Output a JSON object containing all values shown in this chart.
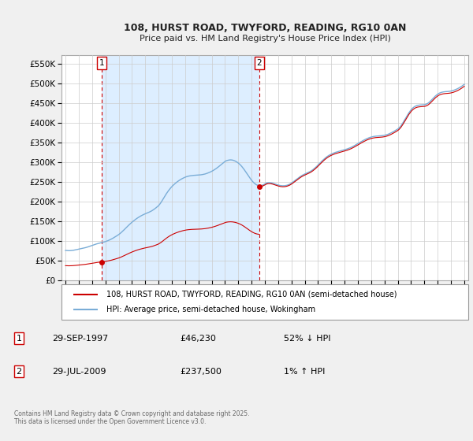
{
  "title_line1": "108, HURST ROAD, TWYFORD, READING, RG10 0AN",
  "title_line2": "Price paid vs. HM Land Registry's House Price Index (HPI)",
  "ylim": [
    0,
    572000
  ],
  "yticks": [
    0,
    50000,
    100000,
    150000,
    200000,
    250000,
    300000,
    350000,
    400000,
    450000,
    500000,
    550000
  ],
  "xlim_start": 1994.7,
  "xlim_end": 2025.3,
  "bg_color": "#f0f0f0",
  "plot_bg_color": "#ffffff",
  "shade_color": "#ddeeff",
  "grid_color": "#cccccc",
  "sale1_x": 1997.747,
  "sale1_y": 46230,
  "sale1_label": "1",
  "sale2_x": 2009.572,
  "sale2_y": 237500,
  "sale2_label": "2",
  "sale_color": "#cc0000",
  "hpi_color": "#7aadd7",
  "legend_label_red": "108, HURST ROAD, TWYFORD, READING, RG10 0AN (semi-detached house)",
  "legend_label_blue": "HPI: Average price, semi-detached house, Wokingham",
  "annotation1_date": "29-SEP-1997",
  "annotation1_price": "£46,230",
  "annotation1_hpi": "52% ↓ HPI",
  "annotation2_date": "29-JUL-2009",
  "annotation2_price": "£237,500",
  "annotation2_hpi": "1% ↑ HPI",
  "footer": "Contains HM Land Registry data © Crown copyright and database right 2025.\nThis data is licensed under the Open Government Licence v3.0.",
  "hpi_index_x": [
    1995.0,
    1995.083,
    1995.167,
    1995.25,
    1995.333,
    1995.417,
    1995.5,
    1995.583,
    1995.667,
    1995.75,
    1995.833,
    1995.917,
    1996.0,
    1996.083,
    1996.167,
    1996.25,
    1996.333,
    1996.417,
    1996.5,
    1996.583,
    1996.667,
    1996.75,
    1996.833,
    1996.917,
    1997.0,
    1997.083,
    1997.167,
    1997.25,
    1997.333,
    1997.417,
    1997.5,
    1997.583,
    1997.667,
    1997.747,
    1997.833,
    1997.917,
    1998.0,
    1998.083,
    1998.167,
    1998.25,
    1998.333,
    1998.417,
    1998.5,
    1998.583,
    1998.667,
    1998.75,
    1998.833,
    1998.917,
    1999.0,
    1999.083,
    1999.167,
    1999.25,
    1999.333,
    1999.417,
    1999.5,
    1999.583,
    1999.667,
    1999.75,
    1999.833,
    1999.917,
    2000.0,
    2000.083,
    2000.167,
    2000.25,
    2000.333,
    2000.417,
    2000.5,
    2000.583,
    2000.667,
    2000.75,
    2000.833,
    2000.917,
    2001.0,
    2001.083,
    2001.167,
    2001.25,
    2001.333,
    2001.417,
    2001.5,
    2001.583,
    2001.667,
    2001.75,
    2001.833,
    2001.917,
    2002.0,
    2002.083,
    2002.167,
    2002.25,
    2002.333,
    2002.417,
    2002.5,
    2002.583,
    2002.667,
    2002.75,
    2002.833,
    2002.917,
    2003.0,
    2003.083,
    2003.167,
    2003.25,
    2003.333,
    2003.417,
    2003.5,
    2003.583,
    2003.667,
    2003.75,
    2003.833,
    2003.917,
    2004.0,
    2004.083,
    2004.167,
    2004.25,
    2004.333,
    2004.417,
    2004.5,
    2004.583,
    2004.667,
    2004.75,
    2004.833,
    2004.917,
    2005.0,
    2005.083,
    2005.167,
    2005.25,
    2005.333,
    2005.417,
    2005.5,
    2005.583,
    2005.667,
    2005.75,
    2005.833,
    2005.917,
    2006.0,
    2006.083,
    2006.167,
    2006.25,
    2006.333,
    2006.417,
    2006.5,
    2006.583,
    2006.667,
    2006.75,
    2006.833,
    2006.917,
    2007.0,
    2007.083,
    2007.167,
    2007.25,
    2007.333,
    2007.417,
    2007.5,
    2007.583,
    2007.667,
    2007.75,
    2007.833,
    2007.917,
    2008.0,
    2008.083,
    2008.167,
    2008.25,
    2008.333,
    2008.417,
    2008.5,
    2008.583,
    2008.667,
    2008.75,
    2008.833,
    2008.917,
    2009.0,
    2009.083,
    2009.167,
    2009.25,
    2009.333,
    2009.417,
    2009.5,
    2009.572,
    2009.583,
    2009.667,
    2009.75,
    2009.833,
    2009.917,
    2010.0,
    2010.083,
    2010.167,
    2010.25,
    2010.333,
    2010.417,
    2010.5,
    2010.583,
    2010.667,
    2010.75,
    2010.833,
    2010.917,
    2011.0,
    2011.083,
    2011.167,
    2011.25,
    2011.333,
    2011.417,
    2011.5,
    2011.583,
    2011.667,
    2011.75,
    2011.833,
    2011.917,
    2012.0,
    2012.083,
    2012.167,
    2012.25,
    2012.333,
    2012.417,
    2012.5,
    2012.583,
    2012.667,
    2012.75,
    2012.833,
    2012.917,
    2013.0,
    2013.083,
    2013.167,
    2013.25,
    2013.333,
    2013.417,
    2013.5,
    2013.583,
    2013.667,
    2013.75,
    2013.833,
    2013.917,
    2014.0,
    2014.083,
    2014.167,
    2014.25,
    2014.333,
    2014.417,
    2014.5,
    2014.583,
    2014.667,
    2014.75,
    2014.833,
    2014.917,
    2015.0,
    2015.083,
    2015.167,
    2015.25,
    2015.333,
    2015.417,
    2015.5,
    2015.583,
    2015.667,
    2015.75,
    2015.833,
    2015.917,
    2016.0,
    2016.083,
    2016.167,
    2016.25,
    2016.333,
    2016.417,
    2016.5,
    2016.583,
    2016.667,
    2016.75,
    2016.833,
    2016.917,
    2017.0,
    2017.083,
    2017.167,
    2017.25,
    2017.333,
    2017.417,
    2017.5,
    2017.583,
    2017.667,
    2017.75,
    2017.833,
    2017.917,
    2018.0,
    2018.083,
    2018.167,
    2018.25,
    2018.333,
    2018.417,
    2018.5,
    2018.583,
    2018.667,
    2018.75,
    2018.833,
    2018.917,
    2019.0,
    2019.083,
    2019.167,
    2019.25,
    2019.333,
    2019.417,
    2019.5,
    2019.583,
    2019.667,
    2019.75,
    2019.833,
    2019.917,
    2020.0,
    2020.083,
    2020.167,
    2020.25,
    2020.333,
    2020.417,
    2020.5,
    2020.583,
    2020.667,
    2020.75,
    2020.833,
    2020.917,
    2021.0,
    2021.083,
    2021.167,
    2021.25,
    2021.333,
    2021.417,
    2021.5,
    2021.583,
    2021.667,
    2021.75,
    2021.833,
    2021.917,
    2022.0,
    2022.083,
    2022.167,
    2022.25,
    2022.333,
    2022.417,
    2022.5,
    2022.583,
    2022.667,
    2022.75,
    2022.833,
    2022.917,
    2023.0,
    2023.083,
    2023.167,
    2023.25,
    2023.333,
    2023.417,
    2023.5,
    2023.583,
    2023.667,
    2023.75,
    2023.833,
    2023.917,
    2024.0,
    2024.083,
    2024.167,
    2024.25,
    2024.333,
    2024.417,
    2024.5,
    2024.583,
    2024.667,
    2024.75,
    2024.833,
    2024.917,
    2025.0
  ],
  "hpi_index_y": [
    76.5,
    76.2,
    76.0,
    75.8,
    75.9,
    76.1,
    76.4,
    76.8,
    77.3,
    77.9,
    78.5,
    79.2,
    79.9,
    80.5,
    81.1,
    81.7,
    82.3,
    82.9,
    83.6,
    84.4,
    85.3,
    86.3,
    87.3,
    88.3,
    89.3,
    90.3,
    91.3,
    92.3,
    93.2,
    94.0,
    94.8,
    95.5,
    96.2,
    96.8,
    97.5,
    98.3,
    99.2,
    100.2,
    101.3,
    102.5,
    103.8,
    105.2,
    106.7,
    108.3,
    110.0,
    111.8,
    113.6,
    115.4,
    117.3,
    119.5,
    121.9,
    124.5,
    127.2,
    130.0,
    132.9,
    135.8,
    138.6,
    141.4,
    144.1,
    146.7,
    149.2,
    151.6,
    153.9,
    156.1,
    158.2,
    160.2,
    162.0,
    163.8,
    165.4,
    167.0,
    168.4,
    169.8,
    171.0,
    172.2,
    173.4,
    174.6,
    175.9,
    177.3,
    178.9,
    180.7,
    182.7,
    184.8,
    187.1,
    189.5,
    192.0,
    195.4,
    199.3,
    203.7,
    208.4,
    213.2,
    218.0,
    222.5,
    226.8,
    230.8,
    234.5,
    238.0,
    241.2,
    244.1,
    246.8,
    249.3,
    251.7,
    253.9,
    256.0,
    257.9,
    259.7,
    261.3,
    262.8,
    264.2,
    265.5,
    266.6,
    267.5,
    268.2,
    268.8,
    269.3,
    269.7,
    270.0,
    270.3,
    270.5,
    270.7,
    270.9,
    271.1,
    271.3,
    271.6,
    272.0,
    272.5,
    273.1,
    273.8,
    274.7,
    275.7,
    276.8,
    278.0,
    279.3,
    280.7,
    282.3,
    284.0,
    285.8,
    287.8,
    289.9,
    292.1,
    294.4,
    296.8,
    299.2,
    301.6,
    303.9,
    306.1,
    307.8,
    308.8,
    309.5,
    310.0,
    310.2,
    310.0,
    309.5,
    308.6,
    307.4,
    305.9,
    304.1,
    302.0,
    299.6,
    296.8,
    293.7,
    290.2,
    286.4,
    282.4,
    278.2,
    273.9,
    269.6,
    265.4,
    261.4,
    257.6,
    254.2,
    251.2,
    248.7,
    246.6,
    245.1,
    244.1,
    243.5,
    243.3,
    243.5,
    244.1,
    245.1,
    246.5,
    248.2,
    249.7,
    250.8,
    251.4,
    251.5,
    251.3,
    250.8,
    250.1,
    249.2,
    248.2,
    247.2,
    246.2,
    245.3,
    244.5,
    243.9,
    243.5,
    243.3,
    243.3,
    243.5,
    244.0,
    244.7,
    245.7,
    246.9,
    248.4,
    250.2,
    252.2,
    254.4,
    256.6,
    258.8,
    261.0,
    263.2,
    265.3,
    267.3,
    269.1,
    270.8,
    272.3,
    273.7,
    275.0,
    276.2,
    277.5,
    278.9,
    280.4,
    282.2,
    284.2,
    286.4,
    288.8,
    291.4,
    294.1,
    297.0,
    299.9,
    302.8,
    305.7,
    308.5,
    311.2,
    313.8,
    316.2,
    318.4,
    320.4,
    322.2,
    323.8,
    325.2,
    326.5,
    327.7,
    328.8,
    329.8,
    330.7,
    331.6,
    332.4,
    333.2,
    334.0,
    334.8,
    335.6,
    336.4,
    337.3,
    338.2,
    339.2,
    340.3,
    341.5,
    342.8,
    344.2,
    345.7,
    347.3,
    348.9,
    350.6,
    352.3,
    354.0,
    355.7,
    357.4,
    359.1,
    360.7,
    362.2,
    363.6,
    365.0,
    366.2,
    367.3,
    368.3,
    369.2,
    369.9,
    370.5,
    371.0,
    371.4,
    371.7,
    371.9,
    372.1,
    372.3,
    372.5,
    372.8,
    373.2,
    373.7,
    374.4,
    375.2,
    376.2,
    377.3,
    378.6,
    380.0,
    381.5,
    383.1,
    384.7,
    386.4,
    388.2,
    390.0,
    392.4,
    395.4,
    399.0,
    403.2,
    407.8,
    412.6,
    417.6,
    422.5,
    427.3,
    431.8,
    435.9,
    439.6,
    442.7,
    445.3,
    447.4,
    449.0,
    450.2,
    451.0,
    451.5,
    451.8,
    452.0,
    452.1,
    452.3,
    452.7,
    453.4,
    454.5,
    456.1,
    458.1,
    460.6,
    463.4,
    466.4,
    469.5,
    472.5,
    475.3,
    477.8,
    480.0,
    481.7,
    483.1,
    484.2,
    485.0,
    485.6,
    486.0,
    486.3,
    486.5,
    486.7,
    487.0,
    487.4,
    487.9,
    488.6,
    489.4,
    490.4,
    491.5,
    492.7,
    494.1,
    495.6,
    497.3,
    499.1,
    501.0,
    503.0,
    505.1
  ]
}
